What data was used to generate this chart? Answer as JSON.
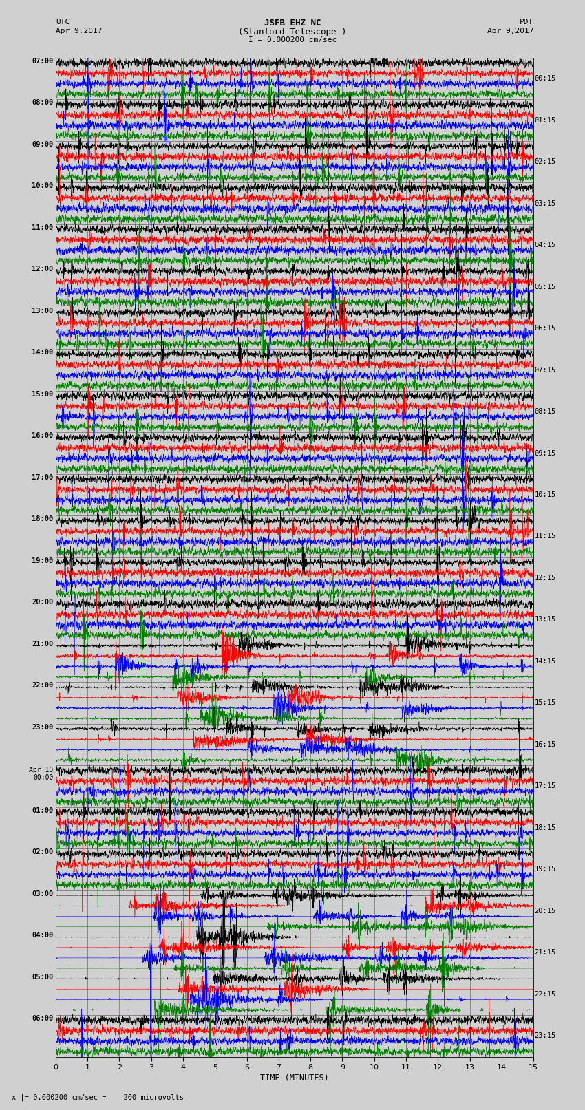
{
  "title_line1": "JSFB EHZ NC",
  "title_line2": "(Stanford Telescope )",
  "scale_label": "I = 0.000200 cm/sec",
  "utc_label": "UTC",
  "utc_date": "Apr 9,2017",
  "pdt_label": "PDT",
  "pdt_date": "Apr 9,2017",
  "xlabel": "TIME (MINUTES)",
  "footer": "x |= 0.000200 cm/sec =    200 microvolts",
  "left_times": [
    "07:00",
    "08:00",
    "09:00",
    "10:00",
    "11:00",
    "12:00",
    "13:00",
    "14:00",
    "15:00",
    "16:00",
    "17:00",
    "18:00",
    "19:00",
    "20:00",
    "21:00",
    "22:00",
    "23:00",
    "Apr 10\n00:00",
    "01:00",
    "02:00",
    "03:00",
    "04:00",
    "05:00",
    "06:00"
  ],
  "right_times": [
    "00:15",
    "01:15",
    "02:15",
    "03:15",
    "04:15",
    "05:15",
    "06:15",
    "07:15",
    "08:15",
    "09:15",
    "10:15",
    "11:15",
    "12:15",
    "13:15",
    "14:15",
    "15:15",
    "16:15",
    "17:15",
    "18:15",
    "19:15",
    "20:15",
    "21:15",
    "22:15",
    "23:15"
  ],
  "trace_colors": [
    "black",
    "red",
    "blue",
    "green"
  ],
  "n_rows": 24,
  "traces_per_row": 4,
  "x_min": 0,
  "x_max": 15,
  "x_ticks": [
    0,
    1,
    2,
    3,
    4,
    5,
    6,
    7,
    8,
    9,
    10,
    11,
    12,
    13,
    14,
    15
  ],
  "event_rows": [
    14,
    15,
    16
  ],
  "large_event_rows": [
    20,
    21,
    22
  ],
  "bg_color": "#d0d0d0"
}
